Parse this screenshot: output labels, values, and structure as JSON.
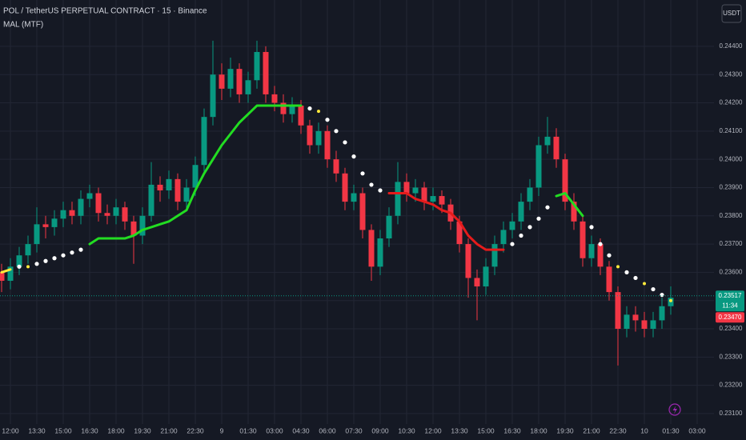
{
  "header": {
    "title": "POL / TetherUS PERPETUAL CONTRACT · 15 · Binance",
    "indicator": "MAL (MTF)",
    "currency_button": "USDT"
  },
  "chart_data": {
    "type": "candlestick",
    "categories": [
      null,
      "12:00",
      null,
      null,
      "13:30",
      null,
      null,
      "15:00",
      null,
      null,
      "16:30",
      null,
      null,
      "18:00",
      null,
      null,
      "19:30",
      null,
      null,
      "21:00",
      null,
      null,
      "22:30",
      null,
      null,
      "9",
      null,
      null,
      "01:30",
      null,
      null,
      "03:00",
      null,
      null,
      "04:30",
      null,
      null,
      "06:00",
      null,
      null,
      "07:30",
      null,
      null,
      "09:00",
      null,
      null,
      "10:30",
      null,
      null,
      "12:00",
      null,
      null,
      "13:30",
      null,
      null,
      "15:00",
      null,
      null,
      "16:30",
      null,
      null,
      "18:00",
      null,
      null,
      "19:30",
      null,
      null,
      "21:00",
      null,
      null,
      "22:30",
      null,
      null,
      "10",
      null,
      null,
      "01:30",
      null,
      null,
      "03:00"
    ],
    "open": [
      0.236,
      0.2357,
      0.2362,
      0.2366,
      0.237,
      0.2377,
      0.2376,
      0.2379,
      0.2382,
      0.238,
      0.2386,
      0.2388,
      0.2381,
      0.238,
      0.2383,
      0.2378,
      0.2373,
      0.238,
      0.2391,
      0.2389,
      0.2393,
      0.2385,
      0.239,
      0.2398,
      0.2415,
      0.243,
      0.2425,
      0.2432,
      0.2423,
      0.2428,
      0.2438,
      0.2423,
      0.242,
      0.2416,
      0.2419,
      0.2412,
      0.2405,
      0.241,
      0.24,
      0.2395,
      0.2385,
      0.2388,
      0.2375,
      0.2362,
      0.2372,
      0.238,
      0.2392,
      0.2388,
      0.239,
      0.2385,
      0.2387,
      0.2384,
      0.2378,
      0.237,
      0.2358,
      0.2355,
      0.2362,
      0.237,
      0.2375,
      0.2378,
      0.2385,
      0.239,
      0.2405,
      0.2408,
      0.24,
      0.2385,
      0.2378,
      0.2365,
      0.237,
      0.2362,
      0.2353,
      0.234,
      0.2345,
      0.2343,
      0.234,
      0.2343,
      0.2348,
      null,
      null,
      null
    ],
    "high": [
      0.2363,
      0.2365,
      0.2369,
      0.2373,
      0.2383,
      0.238,
      0.2382,
      0.2385,
      0.2385,
      0.2389,
      0.2391,
      0.239,
      0.2384,
      0.2386,
      0.2385,
      0.238,
      0.2383,
      0.2399,
      0.2394,
      0.2396,
      0.2395,
      0.2393,
      0.2401,
      0.2418,
      0.2442,
      0.2434,
      0.2436,
      0.2434,
      0.2431,
      0.2442,
      0.244,
      0.2426,
      0.2423,
      0.2422,
      0.2421,
      0.2414,
      0.2413,
      0.2412,
      0.2403,
      0.2397,
      0.2391,
      0.239,
      0.2377,
      0.2375,
      0.2383,
      0.2399,
      0.2395,
      0.2393,
      0.2392,
      0.239,
      0.2389,
      0.2386,
      0.238,
      0.2372,
      0.2361,
      0.2365,
      0.2373,
      0.2378,
      0.2381,
      0.2388,
      0.2393,
      0.2408,
      0.2415,
      0.2411,
      0.2402,
      0.2388,
      0.238,
      0.2373,
      0.2372,
      0.2364,
      0.2355,
      0.2348,
      0.2348,
      0.2346,
      0.2346,
      0.2351,
      0.2355,
      null,
      null,
      null
    ],
    "low": [
      0.2353,
      0.2354,
      0.2359,
      0.2363,
      0.2367,
      0.2372,
      0.2373,
      0.2376,
      0.2377,
      0.2377,
      0.2383,
      0.2378,
      0.2377,
      0.2377,
      0.2375,
      0.2363,
      0.237,
      0.2378,
      0.2385,
      0.2386,
      0.2382,
      0.2382,
      0.2387,
      0.2395,
      0.2412,
      0.2421,
      0.2422,
      0.242,
      0.242,
      0.2425,
      0.242,
      0.2417,
      0.2413,
      0.2413,
      0.2409,
      0.2402,
      0.2402,
      0.2397,
      0.2392,
      0.2382,
      0.2382,
      0.2372,
      0.2357,
      0.2359,
      0.2369,
      0.2377,
      0.2385,
      0.2385,
      0.2382,
      0.2382,
      0.2381,
      0.2375,
      0.2367,
      0.2351,
      0.2343,
      0.2352,
      0.2359,
      0.2367,
      0.2372,
      0.2375,
      0.2382,
      0.2387,
      0.2402,
      0.2397,
      0.2382,
      0.2375,
      0.2362,
      0.2362,
      0.2359,
      0.235,
      0.2327,
      0.2337,
      0.2339,
      0.2337,
      0.2337,
      0.234,
      0.2345,
      null,
      null,
      null
    ],
    "close": [
      0.2357,
      0.2362,
      0.2366,
      0.237,
      0.2377,
      0.2376,
      0.2379,
      0.2382,
      0.238,
      0.2386,
      0.2388,
      0.2381,
      0.238,
      0.2383,
      0.2378,
      0.2373,
      0.238,
      0.2391,
      0.2389,
      0.2393,
      0.2385,
      0.239,
      0.2398,
      0.2415,
      0.243,
      0.2425,
      0.2432,
      0.2423,
      0.2428,
      0.2438,
      0.2423,
      0.242,
      0.2416,
      0.2419,
      0.2412,
      0.2405,
      0.241,
      0.24,
      0.2395,
      0.2385,
      0.2388,
      0.2375,
      0.2362,
      0.2372,
      0.238,
      0.2392,
      0.2388,
      0.239,
      0.2385,
      0.2387,
      0.2384,
      0.2378,
      0.237,
      0.2358,
      0.2355,
      0.2362,
      0.237,
      0.2375,
      0.2378,
      0.2385,
      0.239,
      0.2405,
      0.2408,
      0.24,
      0.2385,
      0.2378,
      0.2365,
      0.237,
      0.2362,
      0.2353,
      0.234,
      0.2345,
      0.2343,
      0.234,
      0.2343,
      0.2348,
      0.2351,
      null,
      null,
      null
    ],
    "up_color": "#089981",
    "down_color": "#f23645",
    "ma": {
      "values": [
        0.236,
        0.2361,
        0.2362,
        0.2362,
        0.2363,
        0.2364,
        0.2365,
        0.2366,
        0.2367,
        0.2368,
        0.237,
        0.2372,
        0.2372,
        0.2372,
        0.2372,
        0.2373,
        0.2375,
        0.2376,
        0.2377,
        0.2378,
        0.238,
        0.2382,
        0.2389,
        0.2395,
        0.24,
        0.2405,
        0.2409,
        0.2413,
        0.2416,
        0.2419,
        0.2419,
        0.2419,
        0.2419,
        0.2419,
        0.2419,
        0.2418,
        0.2417,
        0.2414,
        0.241,
        0.2406,
        0.2401,
        0.2395,
        0.2391,
        0.2389,
        0.2388,
        0.2388,
        0.2388,
        0.2386,
        0.2385,
        0.2384,
        0.2382,
        0.2381,
        0.2378,
        0.2373,
        0.237,
        0.2368,
        0.2368,
        0.2368,
        0.237,
        0.2373,
        0.2376,
        0.2379,
        0.2383,
        0.2387,
        0.2388,
        0.2384,
        0.238,
        0.2376,
        0.237,
        0.2366,
        0.2362,
        0.236,
        0.2358,
        0.2356,
        0.2354,
        0.2352,
        0.235,
        null,
        null,
        null
      ],
      "colors": [
        "#ffeb3b",
        "#ffeb3b",
        "#ffffff",
        "#ffeb3b",
        "#ffffff",
        "#ffffff",
        "#ffffff",
        "#ffffff",
        "#ffffff",
        "#ffffff",
        "#22dd22",
        "#22dd22",
        "#22dd22",
        "#22dd22",
        "#22dd22",
        "#22dd22",
        "#22dd22",
        "#22dd22",
        "#22dd22",
        "#22dd22",
        "#22dd22",
        "#22dd22",
        "#22dd22",
        "#22dd22",
        "#22dd22",
        "#22dd22",
        "#22dd22",
        "#22dd22",
        "#22dd22",
        "#22dd22",
        "#22dd22",
        "#22dd22",
        "#22dd22",
        "#22dd22",
        "#22dd22",
        "#ffffff",
        "#ffeb3b",
        "#ffffff",
        "#ffffff",
        "#ffffff",
        "#ffffff",
        "#ffffff",
        "#ffffff",
        "#ffffff",
        "#e51b1b",
        "#e51b1b",
        "#e51b1b",
        "#e51b1b",
        "#e51b1b",
        "#e51b1b",
        "#e51b1b",
        "#e51b1b",
        "#e51b1b",
        "#e51b1b",
        "#e51b1b",
        "#e51b1b",
        "#e51b1b",
        "#e51b1b",
        "#ffffff",
        "#ffffff",
        "#ffffff",
        "#ffffff",
        "#ffffff",
        "#22dd22",
        "#22dd22",
        "#22dd22",
        "#22dd22",
        "#ffffff",
        "#ffffff",
        "#ffffff",
        "#ffeb3b",
        "#ffffff",
        "#ffffff",
        "#ffeb3b",
        "#ffffff",
        "#ffffff",
        "#ffeb3b",
        null,
        null,
        null
      ]
    },
    "ylim": [
      0.23063,
      0.24564
    ],
    "yticks": [
      {
        "value": 0.244,
        "label": "0.24400"
      },
      {
        "value": 0.243,
        "label": "0.24300"
      },
      {
        "value": 0.242,
        "label": "0.24200"
      },
      {
        "value": 0.241,
        "label": "0.24100"
      },
      {
        "value": 0.24,
        "label": "0.24000"
      },
      {
        "value": 0.239,
        "label": "0.23900"
      },
      {
        "value": 0.238,
        "label": "0.23800"
      },
      {
        "value": 0.237,
        "label": "0.23700"
      },
      {
        "value": 0.236,
        "label": "0.23600"
      },
      {
        "value": 0.235,
        "label": "0.23500"
      },
      {
        "value": 0.234,
        "label": "0.23400"
      },
      {
        "value": 0.233,
        "label": "0.23300"
      },
      {
        "value": 0.232,
        "label": "0.23200"
      },
      {
        "value": 0.231,
        "label": "0.23100"
      }
    ],
    "grid": true,
    "price_tags": [
      {
        "value": 0.23517,
        "label": "0.23517",
        "timer": "11:34",
        "color": "#089981"
      },
      {
        "value": 0.2347,
        "label": "0.23470",
        "color": "#f23645"
      }
    ]
  }
}
